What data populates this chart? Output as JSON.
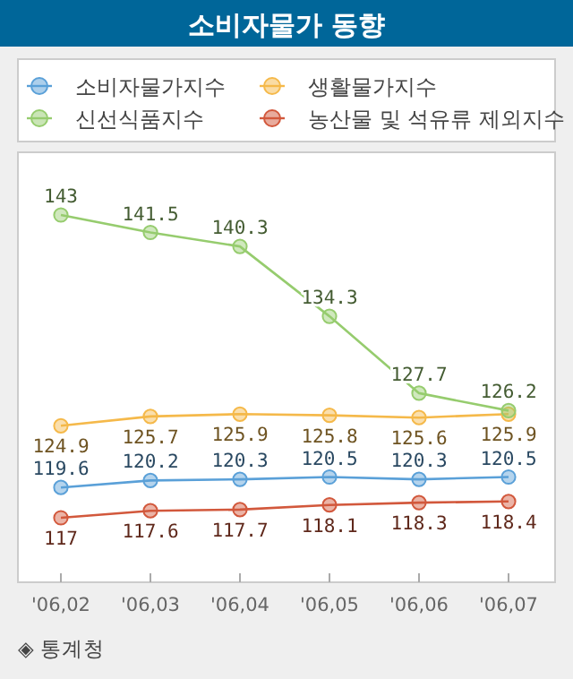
{
  "chart_data": {
    "type": "line",
    "title": "소비자물가 동향",
    "categories": [
      "'06,02",
      "'06,03",
      "'06,04",
      "'06,05",
      "'06,06",
      "'06,07"
    ],
    "series": [
      {
        "name": "소비자물가지수",
        "color": "#5aa0d8",
        "values": [
          119.6,
          120.2,
          120.3,
          120.5,
          120.3,
          120.5
        ]
      },
      {
        "name": "생활물가지수",
        "color": "#f5b94a",
        "values": [
          124.9,
          125.7,
          125.9,
          125.8,
          125.6,
          125.9
        ]
      },
      {
        "name": "신선식품지수",
        "color": "#96cc6e",
        "values": [
          143,
          141.5,
          140.3,
          134.3,
          127.7,
          126.2
        ]
      },
      {
        "name": "농산물 및 석유류 제외지수",
        "color": "#d2583c",
        "values": [
          117,
          117.6,
          117.7,
          118.1,
          118.3,
          118.4
        ]
      }
    ],
    "data_labels": true,
    "legend": "top",
    "marker": "circle",
    "line_style": "solid",
    "annotations": [
      "◈ 통계청"
    ]
  }
}
